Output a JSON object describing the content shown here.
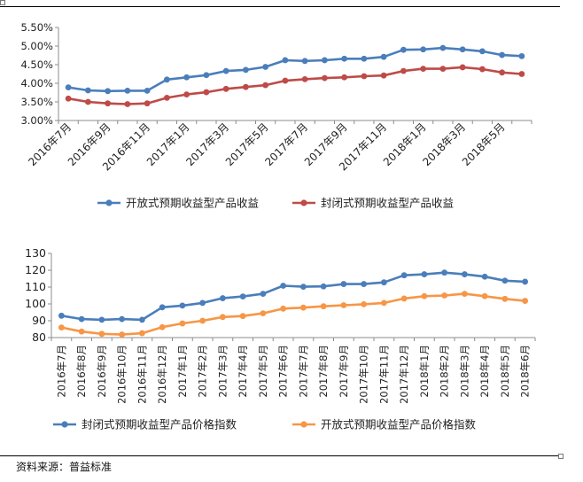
{
  "colors": {
    "blue": "#4a7ebb",
    "red": "#be4b48",
    "orange": "#f79646",
    "axis": "#8c8c8c",
    "text": "#222222"
  },
  "source": "资料来源：普益标准",
  "chart_data": [
    {
      "type": "line",
      "title": "",
      "categories": [
        "2016年7月",
        "2016年8月",
        "2016年9月",
        "2016年10月",
        "2016年11月",
        "2016年12月",
        "2017年1月",
        "2017年2月",
        "2017年3月",
        "2017年4月",
        "2017年5月",
        "2017年6月",
        "2017年7月",
        "2017年8月",
        "2017年9月",
        "2017年10月",
        "2017年11月",
        "2017年12月",
        "2018年1月",
        "2018年2月",
        "2018年3月",
        "2018年4月",
        "2018年5月",
        "2018年6月"
      ],
      "tick_labels": [
        "2016年7月",
        "2016年9月",
        "2016年11月",
        "2017年1月",
        "2017年3月",
        "2017年5月",
        "2017年7月",
        "2017年9月",
        "2017年11月",
        "2018年1月",
        "2018年3月",
        "2018年5月"
      ],
      "y_tick_labels": [
        "3.00%",
        "3.50%",
        "4.00%",
        "4.50%",
        "5.00%",
        "5.50%"
      ],
      "ylim": [
        3.0,
        5.5
      ],
      "y_ticks": [
        3.0,
        3.5,
        4.0,
        4.5,
        5.0,
        5.5
      ],
      "grid": false,
      "legend_position": "bottom",
      "series": [
        {
          "name": "开放式预期收益型产品收益",
          "color": "#4a7ebb",
          "values": [
            3.89,
            3.81,
            3.79,
            3.8,
            3.8,
            4.1,
            4.16,
            4.22,
            4.33,
            4.36,
            4.44,
            4.62,
            4.6,
            4.62,
            4.66,
            4.66,
            4.71,
            4.9,
            4.91,
            4.95,
            4.91,
            4.86,
            4.76,
            4.73
          ]
        },
        {
          "name": "封闭式预期收益型产品收益",
          "color": "#be4b48",
          "values": [
            3.59,
            3.5,
            3.46,
            3.44,
            3.46,
            3.61,
            3.7,
            3.76,
            3.85,
            3.9,
            3.95,
            4.07,
            4.11,
            4.14,
            4.16,
            4.19,
            4.21,
            4.33,
            4.39,
            4.39,
            4.43,
            4.38,
            4.29,
            4.25
          ]
        }
      ]
    },
    {
      "type": "line",
      "title": "",
      "categories": [
        "2016年7月",
        "2016年8月",
        "2016年9月",
        "2016年10月",
        "2016年11月",
        "2016年12月",
        "2017年1月",
        "2017年2月",
        "2017年3月",
        "2017年4月",
        "2017年5月",
        "2017年6月",
        "2017年7月",
        "2017年8月",
        "2017年9月",
        "2017年10月",
        "2017年11月",
        "2017年12月",
        "2018年1月",
        "2018年2月",
        "2018年3月",
        "2018年4月",
        "2018年5月",
        "2018年6月"
      ],
      "tick_labels": [
        "2016年7月",
        "2016年8月",
        "2016年9月",
        "2016年10月",
        "2016年11月",
        "2016年12月",
        "2017年1月",
        "2017年2月",
        "2017年3月",
        "2017年4月",
        "2017年5月",
        "2017年6月",
        "2017年7月",
        "2017年8月",
        "2017年9月",
        "2017年10月",
        "2017年11月",
        "2017年12月",
        "2018年1月",
        "2018年2月",
        "2018年3月",
        "2018年4月",
        "2018年5月",
        "2018年6月"
      ],
      "y_tick_labels": [
        "80",
        "90",
        "100",
        "110",
        "120",
        "130"
      ],
      "ylim": [
        80,
        130
      ],
      "y_ticks": [
        80,
        90,
        100,
        110,
        120,
        130
      ],
      "grid": false,
      "legend_position": "bottom",
      "series": [
        {
          "name": "封闭式预期收益型产品价格指数",
          "color": "#4a7ebb",
          "values": [
            93.0,
            91.0,
            90.6,
            91.0,
            90.6,
            98.0,
            99.0,
            100.6,
            103.4,
            104.4,
            106.0,
            110.8,
            110.2,
            110.4,
            111.8,
            111.8,
            112.8,
            117.0,
            117.6,
            118.6,
            117.6,
            116.2,
            113.8,
            113.2
          ]
        },
        {
          "name": "开放式预期收益型产品价格指数",
          "color": "#f79646",
          "values": [
            86.0,
            83.6,
            82.2,
            81.8,
            82.6,
            86.2,
            88.4,
            90.0,
            92.2,
            92.8,
            94.4,
            97.2,
            97.8,
            98.6,
            99.2,
            99.8,
            100.6,
            103.2,
            104.6,
            105.0,
            106.0,
            104.6,
            103.0,
            101.8
          ]
        }
      ]
    }
  ]
}
